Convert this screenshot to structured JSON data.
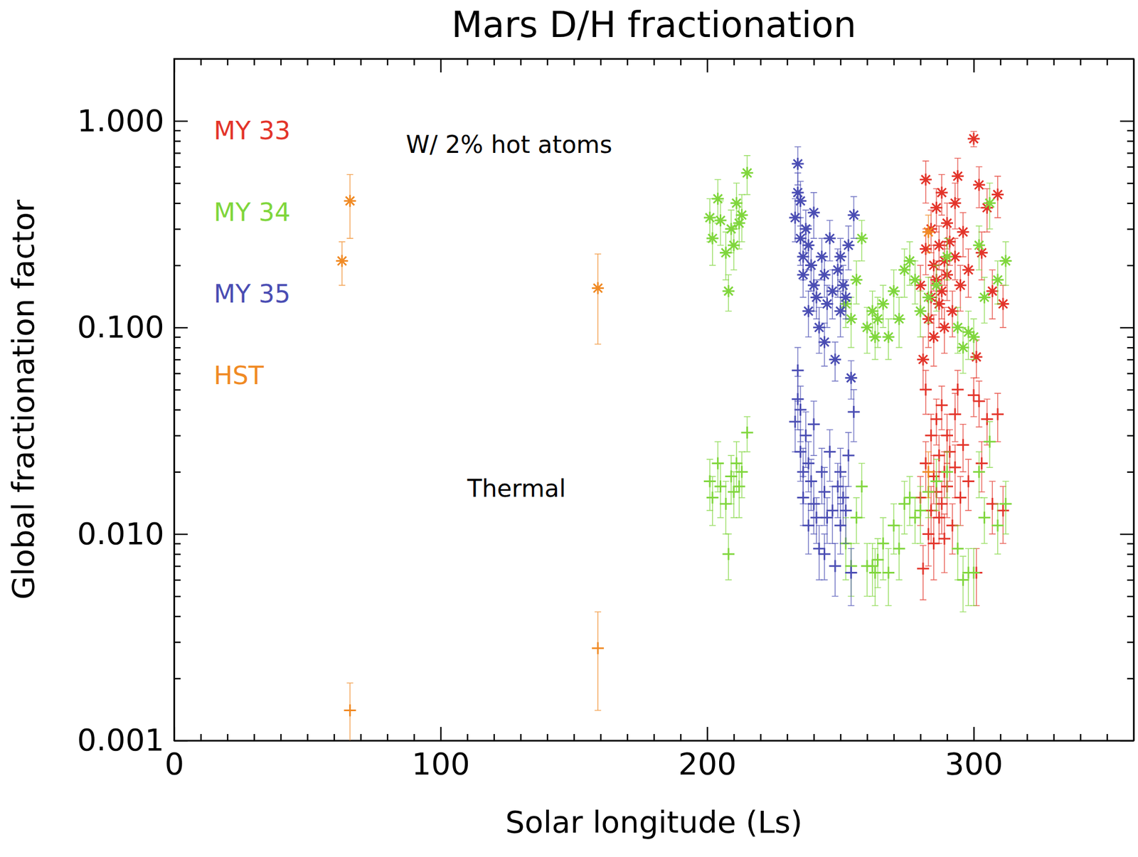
{
  "chart_data": {
    "type": "scatter",
    "title": "Mars D/H fractionation",
    "x_label": "Solar longitude (Ls)",
    "y_label": "Global fractionation factor",
    "log": "y",
    "grid": false,
    "legend": "upper left",
    "xlim": [
      0,
      360
    ],
    "xticks": [
      0,
      100,
      200,
      300
    ],
    "xminor_ticks": [
      10,
      20,
      30,
      40,
      50,
      60,
      70,
      80,
      90,
      110,
      120,
      130,
      140,
      150,
      160,
      170,
      180,
      190,
      210,
      220,
      230,
      240,
      250,
      260,
      270,
      280,
      290,
      310,
      320,
      330,
      340,
      350
    ],
    "ylim": [
      0.001,
      2
    ],
    "yticks": [
      {
        "value": 0.001,
        "label": "0.001"
      },
      {
        "value": 0.01,
        "label": "0.010"
      },
      {
        "value": 0.1,
        "label": "0.100"
      },
      {
        "value": 1,
        "label": "1.000"
      }
    ],
    "yminor_ticks": [
      0.002,
      0.003,
      0.004,
      0.005,
      0.006,
      0.007,
      0.008,
      0.009,
      0.02,
      0.03,
      0.04,
      0.05,
      0.06,
      0.07,
      0.08,
      0.09,
      0.2,
      0.3,
      0.4,
      0.5,
      0.6,
      0.7,
      0.8,
      0.9
    ],
    "annotations": [
      {
        "text": "W/ 2% hot atoms",
        "x": 87,
        "y": 0.77
      },
      {
        "text": "Thermal",
        "x": 110,
        "y": 0.0166
      }
    ],
    "series": [
      {
        "name": "MY 33",
        "color": "#e3342a",
        "x": [
          280,
          281,
          282,
          282,
          283,
          284,
          284,
          285,
          285,
          286,
          286,
          287,
          287,
          288,
          288,
          289,
          289,
          290,
          290,
          291,
          292,
          293,
          293,
          294,
          295,
          296,
          298,
          300,
          301,
          302,
          303,
          305,
          307,
          309,
          311
        ],
        "hot": {
          "marker": "asterisk",
          "values": [
            0.16,
            0.07,
            0.52,
            0.24,
            0.11,
            0.3,
            0.14,
            0.2,
            0.09,
            0.38,
            0.17,
            0.13,
            0.25,
            0.45,
            0.15,
            0.21,
            0.1,
            0.32,
            0.18,
            0.26,
            0.12,
            0.4,
            0.22,
            0.54,
            0.16,
            0.29,
            0.19,
            0.82,
            0.072,
            0.49,
            0.23,
            0.38,
            0.15,
            0.44,
            0.13
          ],
          "errors": [
            0.04,
            0.02,
            0.12,
            0.06,
            0.03,
            0.07,
            0.035,
            0.05,
            0.025,
            0.09,
            0.04,
            0.03,
            0.06,
            0.1,
            0.04,
            0.05,
            0.025,
            0.08,
            0.045,
            0.06,
            0.03,
            0.1,
            0.05,
            0.12,
            0.04,
            0.07,
            0.05,
            0.07,
            0.015,
            0.11,
            0.06,
            0.09,
            0.04,
            0.1,
            0.03
          ]
        },
        "thermal": {
          "marker": "plus",
          "values": [
            0.015,
            0.0068,
            0.05,
            0.022,
            0.01,
            0.03,
            0.013,
            0.019,
            0.009,
            0.036,
            0.016,
            0.012,
            0.024,
            0.042,
            0.014,
            0.02,
            0.0095,
            0.03,
            0.017,
            0.025,
            0.011,
            0.038,
            0.021,
            0.05,
            0.015,
            0.027,
            0.018,
            0.047,
            0.0065,
            0.044,
            0.022,
            0.036,
            0.014,
            0.038,
            0.013
          ],
          "errors": [
            0.004,
            0.002,
            0.012,
            0.006,
            0.003,
            0.008,
            0.004,
            0.005,
            0.003,
            0.009,
            0.004,
            0.003,
            0.006,
            0.01,
            0.004,
            0.005,
            0.003,
            0.008,
            0.005,
            0.007,
            0.003,
            0.01,
            0.006,
            0.012,
            0.004,
            0.007,
            0.005,
            0.01,
            0.002,
            0.011,
            0.006,
            0.009,
            0.004,
            0.01,
            0.004
          ]
        }
      },
      {
        "name": "MY 34",
        "color": "#7fd63c",
        "x": [
          201,
          202,
          204,
          205,
          207,
          208,
          209,
          210,
          211,
          212,
          213,
          215,
          252,
          254,
          256,
          258,
          260,
          262,
          263,
          264,
          266,
          268,
          270,
          272,
          274,
          276,
          278,
          280,
          283,
          286,
          290,
          294,
          296,
          298,
          300,
          302,
          304,
          306,
          309,
          312
        ],
        "hot": {
          "marker": "asterisk",
          "values": [
            0.34,
            0.27,
            0.42,
            0.33,
            0.23,
            0.15,
            0.3,
            0.25,
            0.4,
            0.32,
            0.35,
            0.56,
            0.13,
            0.11,
            0.17,
            0.27,
            0.1,
            0.12,
            0.09,
            0.11,
            0.13,
            0.09,
            0.15,
            0.11,
            0.19,
            0.21,
            0.17,
            0.12,
            0.14,
            0.16,
            0.22,
            0.1,
            0.08,
            0.095,
            0.09,
            0.25,
            0.14,
            0.4,
            0.17,
            0.21
          ],
          "errors": [
            0.08,
            0.07,
            0.1,
            0.08,
            0.06,
            0.03,
            0.07,
            0.06,
            0.1,
            0.08,
            0.09,
            0.12,
            0.03,
            0.03,
            0.04,
            0.06,
            0.025,
            0.03,
            0.02,
            0.03,
            0.03,
            0.02,
            0.04,
            0.03,
            0.05,
            0.05,
            0.04,
            0.03,
            0.035,
            0.04,
            0.05,
            0.025,
            0.02,
            0.025,
            0.02,
            0.06,
            0.035,
            0.1,
            0.04,
            0.05
          ]
        },
        "thermal": {
          "marker": "plus",
          "values": [
            0.018,
            0.015,
            0.022,
            0.017,
            0.014,
            0.008,
            0.019,
            0.016,
            0.022,
            0.017,
            0.02,
            0.031,
            0.009,
            0.007,
            0.012,
            0.017,
            0.007,
            0.007,
            0.0065,
            0.0075,
            0.009,
            0.0065,
            0.011,
            0.0085,
            0.014,
            0.015,
            0.012,
            0.013,
            0.016,
            0.018,
            0.02,
            0.0085,
            0.006,
            0.0065,
            0.0065,
            0.02,
            0.012,
            0.028,
            0.011,
            0.014
          ],
          "errors": [
            0.005,
            0.004,
            0.006,
            0.005,
            0.004,
            0.002,
            0.005,
            0.004,
            0.006,
            0.005,
            0.005,
            0.006,
            0.003,
            0.002,
            0.003,
            0.005,
            0.002,
            0.002,
            0.002,
            0.002,
            0.003,
            0.002,
            0.003,
            0.0025,
            0.004,
            0.004,
            0.003,
            0.004,
            0.004,
            0.005,
            0.005,
            0.0025,
            0.0018,
            0.002,
            0.002,
            0.005,
            0.003,
            0.007,
            0.003,
            0.004
          ]
        }
      },
      {
        "name": "MY 35",
        "color": "#4a4db3",
        "x": [
          233,
          234,
          234,
          235,
          235,
          236,
          236,
          237,
          238,
          238,
          239,
          240,
          240,
          241,
          242,
          243,
          244,
          244,
          245,
          246,
          247,
          248,
          249,
          250,
          250,
          251,
          252,
          253,
          254,
          255
        ],
        "hot": {
          "marker": "asterisk",
          "values": [
            0.34,
            0.45,
            0.62,
            0.27,
            0.41,
            0.22,
            0.18,
            0.3,
            0.25,
            0.12,
            0.2,
            0.16,
            0.36,
            0.14,
            0.1,
            0.22,
            0.18,
            0.085,
            0.13,
            0.27,
            0.15,
            0.07,
            0.19,
            0.12,
            0.22,
            0.16,
            0.14,
            0.25,
            0.057,
            0.35
          ],
          "errors": [
            0.08,
            0.11,
            0.13,
            0.07,
            0.1,
            0.05,
            0.04,
            0.07,
            0.06,
            0.03,
            0.05,
            0.04,
            0.09,
            0.03,
            0.025,
            0.05,
            0.04,
            0.02,
            0.03,
            0.06,
            0.04,
            0.015,
            0.05,
            0.03,
            0.05,
            0.04,
            0.03,
            0.06,
            0.012,
            0.08
          ]
        },
        "thermal": {
          "marker": "plus",
          "values": [
            0.035,
            0.045,
            0.062,
            0.025,
            0.04,
            0.02,
            0.015,
            0.03,
            0.022,
            0.011,
            0.018,
            0.014,
            0.034,
            0.012,
            0.0085,
            0.02,
            0.016,
            0.008,
            0.012,
            0.025,
            0.013,
            0.007,
            0.017,
            0.011,
            0.02,
            0.015,
            0.013,
            0.024,
            0.0065,
            0.039
          ],
          "errors": [
            0.01,
            0.013,
            0.018,
            0.007,
            0.012,
            0.006,
            0.004,
            0.009,
            0.006,
            0.003,
            0.005,
            0.004,
            0.01,
            0.003,
            0.0025,
            0.006,
            0.005,
            0.002,
            0.003,
            0.007,
            0.004,
            0.002,
            0.005,
            0.003,
            0.006,
            0.004,
            0.004,
            0.007,
            0.002,
            0.011
          ]
        }
      },
      {
        "name": "HST",
        "color": "#f08a24",
        "x": [
          63,
          66,
          159,
          283
        ],
        "hot": {
          "marker": "asterisk",
          "values": [
            0.21,
            0.41,
            0.155,
            0.29
          ],
          "errors": [
            0.05,
            0.14,
            0.072,
            0.06
          ]
        },
        "thermal": {
          "marker": "plus",
          "values": [
            null,
            0.0014,
            0.0028,
            0.02
          ],
          "errors": [
            null,
            0.0005,
            0.0014,
            0.005
          ]
        }
      }
    ]
  }
}
